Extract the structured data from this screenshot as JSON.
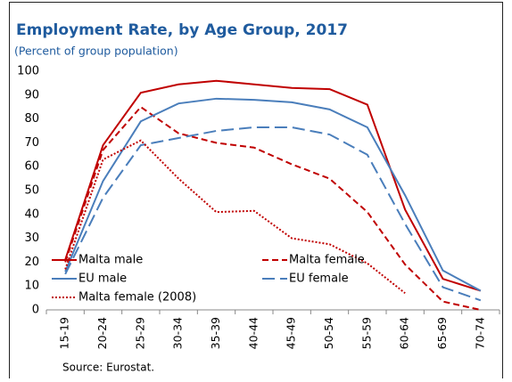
{
  "chart_data": {
    "type": "line",
    "title": "Employment Rate, by Age Group, 2017",
    "subtitle": "(Percent of group population)",
    "source": "Source: Eurostat.",
    "categories": [
      "15-19",
      "20-24",
      "25-29",
      "30-34",
      "35-39",
      "40-44",
      "45-49",
      "50-54",
      "55-59",
      "60-64",
      "65-69",
      "70-74"
    ],
    "ylim": [
      0,
      100
    ],
    "yticks": [
      0,
      10,
      20,
      30,
      40,
      50,
      60,
      70,
      80,
      90,
      100
    ],
    "grid": false,
    "legend": "lower left",
    "series": [
      {
        "name": "Malta male",
        "color": "#c00000",
        "dash": "solid",
        "values": [
          21,
          69,
          91,
          94.5,
          96,
          94.5,
          93,
          92.5,
          86,
          42,
          13,
          8
        ]
      },
      {
        "name": "Malta female",
        "color": "#c00000",
        "dash": "dashed",
        "values": [
          20,
          67,
          85,
          74,
          70,
          68,
          61,
          55,
          41,
          19,
          3.5,
          0
        ]
      },
      {
        "name": "EU male",
        "color": "#4a7ebb",
        "dash": "solid",
        "values": [
          16,
          54,
          79,
          86.5,
          88.5,
          88,
          87,
          84,
          76.5,
          48,
          16.5,
          8
        ]
      },
      {
        "name": "EU female",
        "color": "#4a7ebb",
        "dash": "long-dashed",
        "values": [
          15,
          47,
          69,
          72,
          75,
          76.5,
          76.5,
          73.5,
          65,
          36,
          9.5,
          4
        ]
      },
      {
        "name": "Malta female (2008)",
        "color": "#c00000",
        "dash": "dotted",
        "values": [
          17,
          63,
          71,
          55,
          41,
          41.5,
          30,
          27.5,
          19.5,
          7,
          null,
          null
        ]
      }
    ]
  }
}
